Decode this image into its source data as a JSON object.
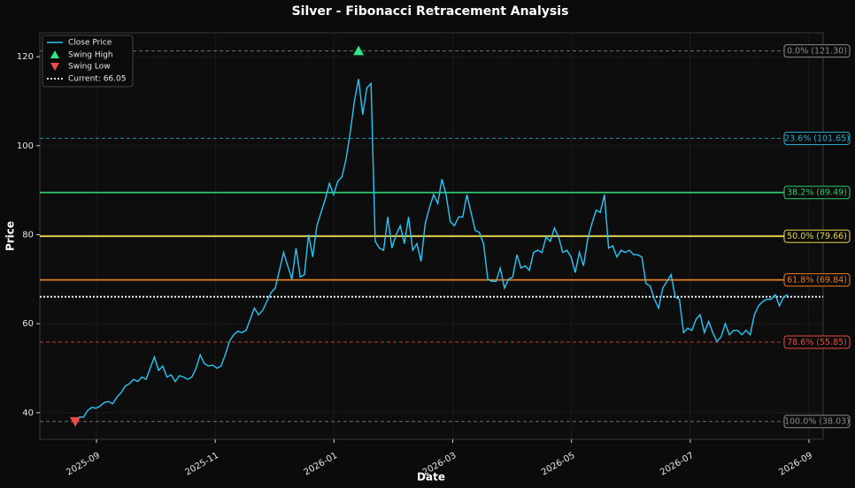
{
  "chart_data": {
    "type": "line",
    "title": "Silver - Fibonacci Retracement Analysis",
    "xlabel": "Date",
    "ylabel": "Price",
    "xticks": [
      "2025-09",
      "2025-11",
      "2026-01",
      "2026-03",
      "2026-05",
      "2026-07",
      "2026-09"
    ],
    "ylim": [
      34.0,
      125.4
    ],
    "yticks": [
      40,
      60,
      80,
      100,
      120
    ],
    "grid": true,
    "legend": "upper left",
    "series": [
      {
        "name": "Close Price",
        "color": "#29c5f6",
        "values": [
          38.5,
          39,
          39,
          40.5,
          41.2,
          41.0,
          41.5,
          42.3,
          42.5,
          42,
          43.5,
          44.5,
          46,
          46.5,
          47.5,
          47,
          48,
          47.5,
          50,
          52.5,
          49.5,
          50.5,
          48,
          48.5,
          47,
          48.3,
          48,
          47.5,
          48,
          50,
          53,
          51,
          50.5,
          50.7,
          50,
          50.5,
          53,
          56,
          57.5,
          58.3,
          58,
          58.5,
          61,
          63.5,
          62,
          63,
          65,
          67,
          68,
          72,
          76,
          73,
          70,
          77,
          70.5,
          71,
          80,
          75,
          82,
          85,
          88,
          91.5,
          89,
          92,
          93,
          97,
          103,
          110,
          115,
          107,
          113,
          114,
          78.5,
          77,
          76.5,
          84,
          77,
          80,
          82,
          78,
          84,
          76.5,
          78,
          74,
          82.5,
          86,
          89,
          87,
          92.5,
          89,
          83,
          82,
          84,
          84,
          89,
          85,
          81,
          80.5,
          78,
          70,
          69.5,
          69.5,
          72.5,
          68,
          70,
          70.5,
          75.5,
          72.5,
          73,
          72,
          76,
          76.5,
          76,
          79.5,
          78.5,
          81.5,
          79.5,
          76,
          76.5,
          75,
          71.5,
          76,
          73,
          79,
          82.5,
          85.5,
          85,
          89,
          77,
          77.5,
          75,
          76.5,
          76,
          76.5,
          75.5,
          75.5,
          75,
          69,
          68.5,
          65.5,
          63.5,
          68,
          69.5,
          71,
          66,
          65.5,
          58,
          59,
          58.5,
          61,
          62,
          58,
          60.5,
          58,
          56,
          57,
          60,
          57.5,
          58.5,
          58.5,
          57.5,
          58.5,
          57.5,
          62,
          64,
          65,
          65.5,
          65.5,
          66.5,
          64,
          66,
          66.5
        ]
      }
    ],
    "swing_high": {
      "name": "Swing High",
      "value": 121.3,
      "color": "#2ee88a"
    },
    "swing_low": {
      "name": "Swing Low",
      "value": 38.03,
      "color": "#ef4b4b"
    },
    "current": {
      "label": "Current: 66.05",
      "value": 66.05,
      "color": "#ffffff"
    },
    "levels": [
      {
        "label": "0.0% (121.30)",
        "value": 121.3,
        "color": "#8a8a8a",
        "style": "dashed"
      },
      {
        "label": "23.6% (101.65)",
        "value": 101.65,
        "color": "#2aa7c9",
        "style": "dashed"
      },
      {
        "label": "38.2% (89.49)",
        "value": 89.49,
        "color": "#2ecc71",
        "style": "solid"
      },
      {
        "label": "50.0% (79.66)",
        "value": 79.66,
        "color": "#e8d84a",
        "style": "solid"
      },
      {
        "label": "61.8% (69.84)",
        "value": 69.84,
        "color": "#e67e22",
        "style": "solid"
      },
      {
        "label": "78.6% (55.85)",
        "value": 55.85,
        "color": "#e74c3c",
        "style": "dashed"
      },
      {
        "label": "100.0% (38.03)",
        "value": 38.03,
        "color": "#8a8a8a",
        "style": "dashed"
      }
    ]
  }
}
